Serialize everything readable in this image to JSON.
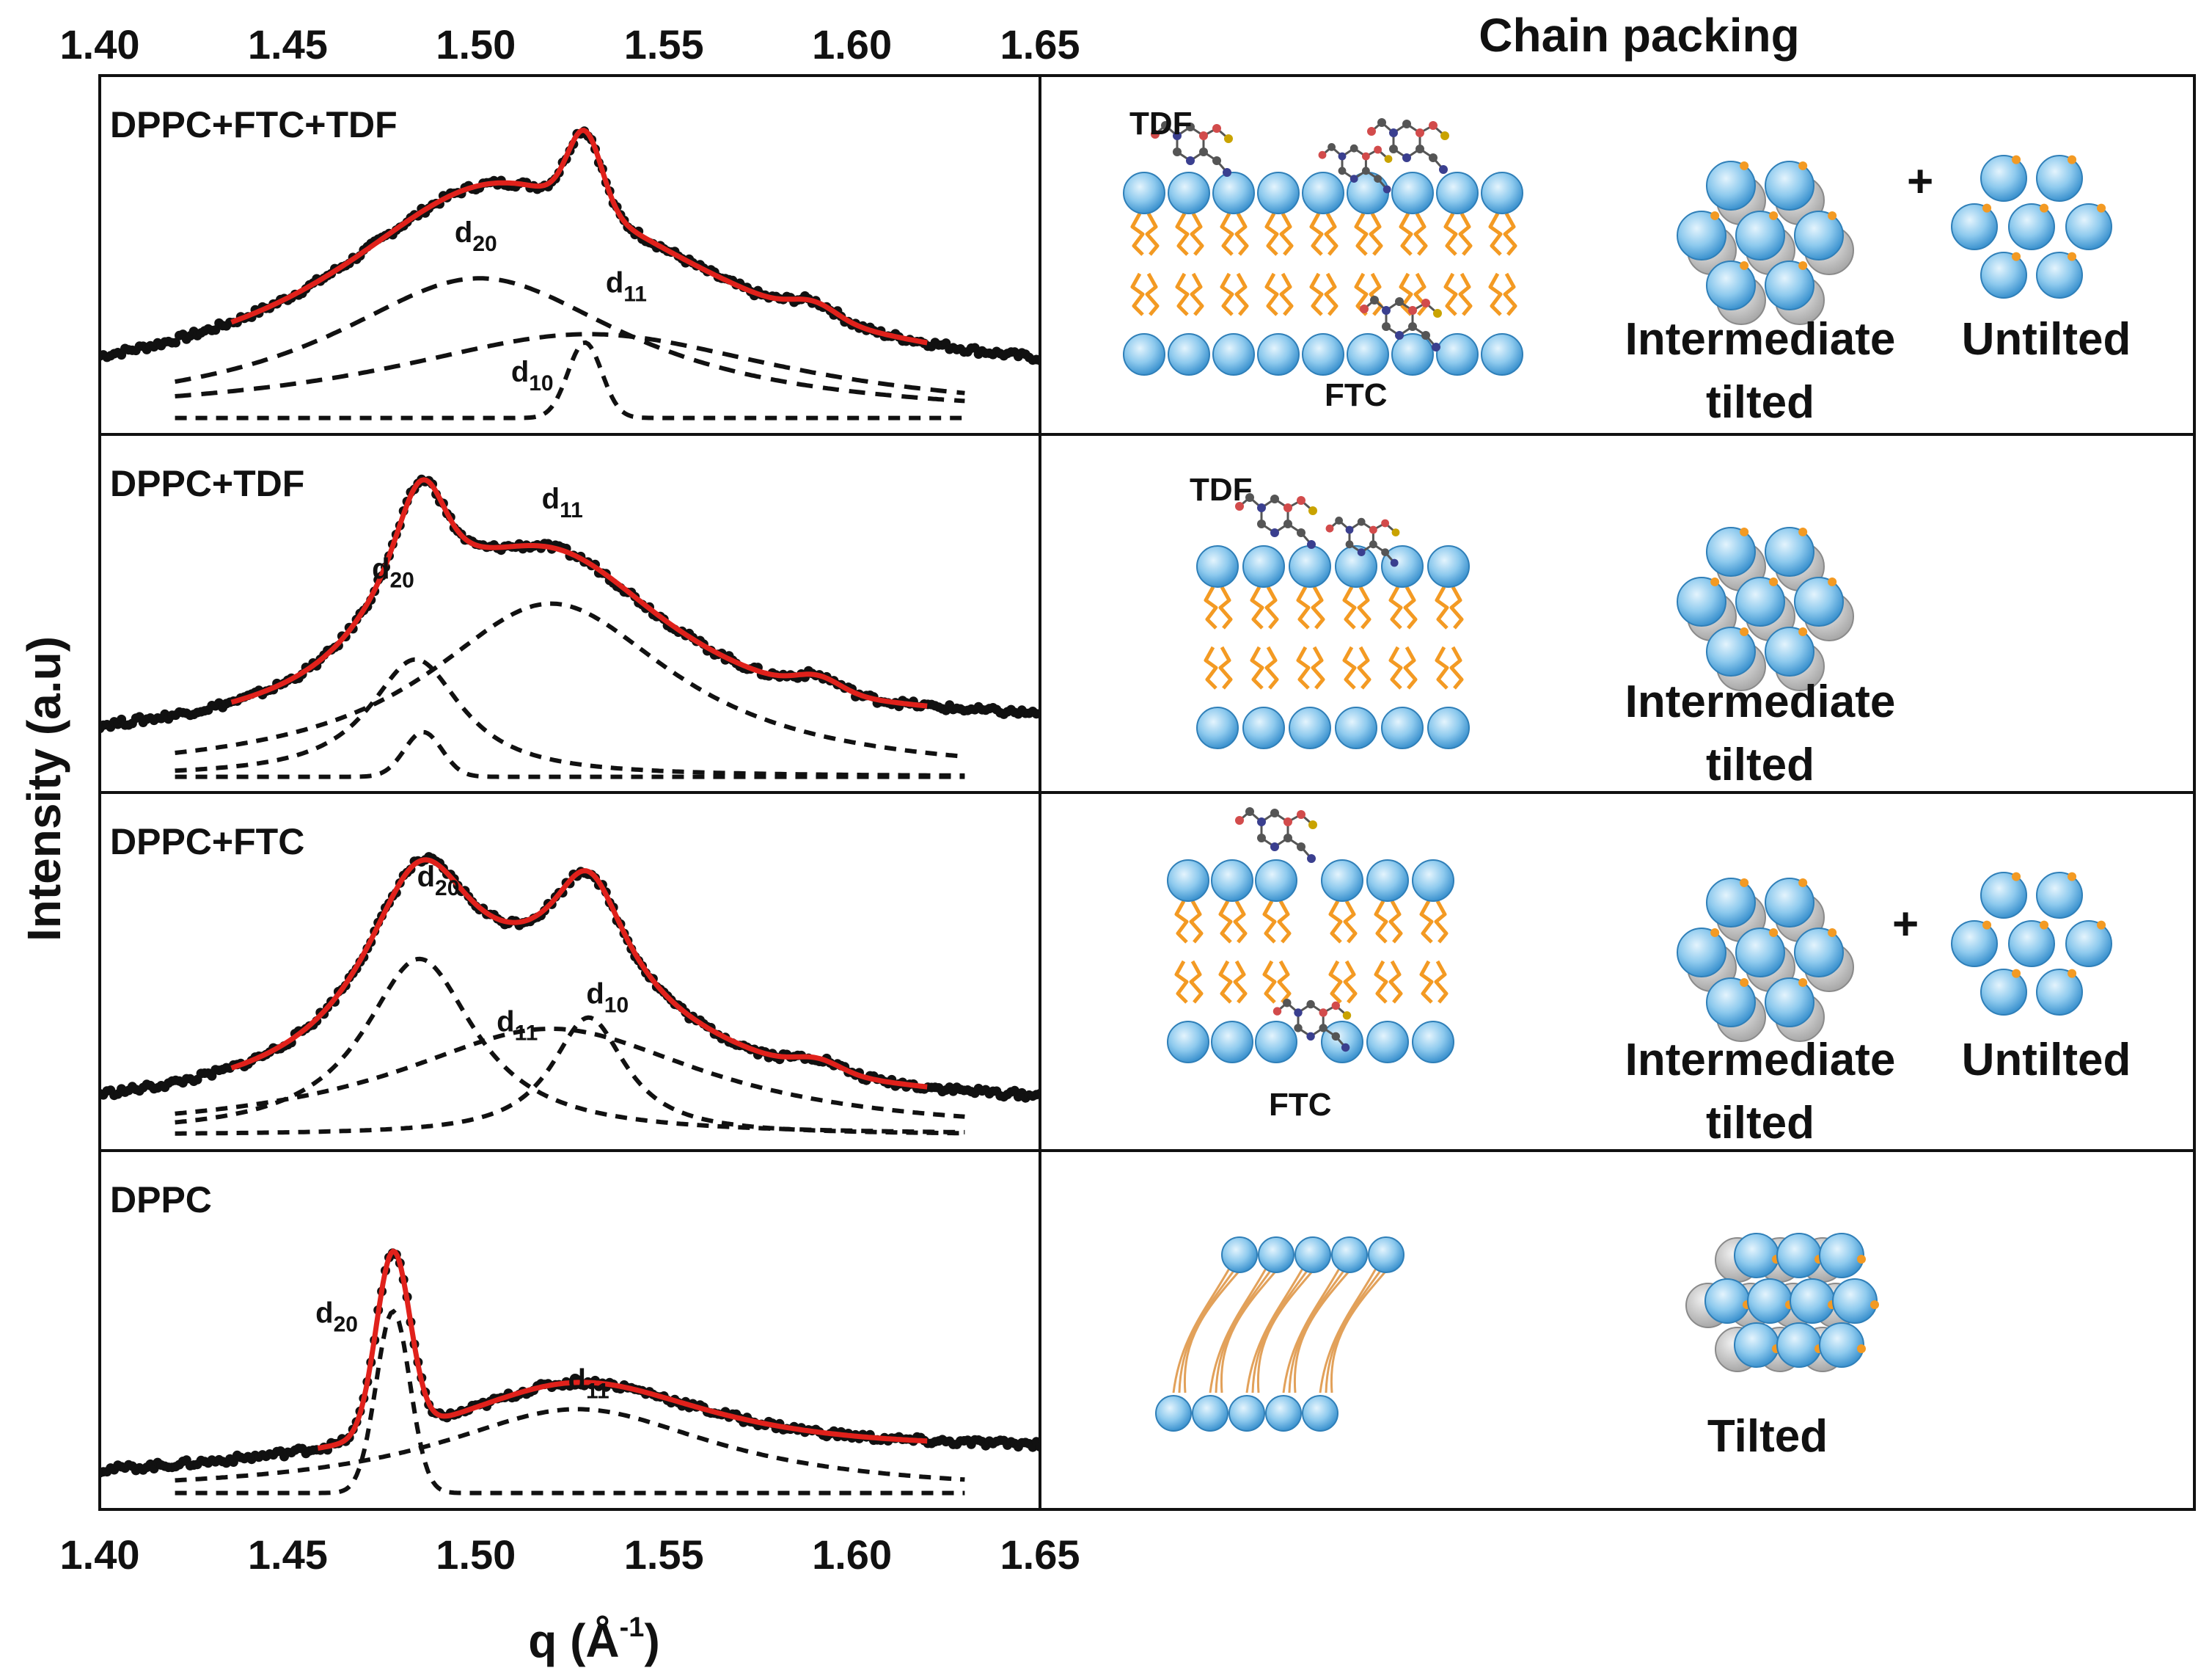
{
  "chart_data": {
    "type": "line",
    "xlabel_base": "q (Å",
    "xlabel_sup": "-1",
    "xlabel_end": ")",
    "ylabel": "Intensity (a.u)",
    "xlim": [
      1.4,
      1.65
    ],
    "xticks": [
      "1.40",
      "1.45",
      "1.50",
      "1.55",
      "1.60",
      "1.65"
    ],
    "right_title": "Chain packing",
    "panels": [
      {
        "name": "DPPC+FTC+TDF",
        "baseline": 0.1,
        "slope": 0.03,
        "data_range": [
          1.4,
          1.65
        ],
        "fit_range": [
          1.435,
          1.62
        ],
        "components": [
          {
            "label": "20",
            "center": 1.501,
            "height": 0.5,
            "width": 0.048,
            "dash": "long",
            "lab_q": 1.5,
            "lab_y": 0.66
          },
          {
            "label": "11",
            "center": 1.53,
            "height": 0.3,
            "width": 0.065,
            "dash": "long",
            "lab_q": 1.54,
            "lab_y": 0.48
          },
          {
            "label": "10",
            "center": 1.529,
            "height": 0.27,
            "width": 0.0045,
            "dash": "short",
            "lab_q": 1.515,
            "lab_y": 0.16
          }
        ],
        "bumps": [
          {
            "center": 1.59,
            "height": 0.05,
            "width": 0.006
          }
        ],
        "packing": [
          "Intermediate tilted",
          "Untilted"
        ],
        "molecules": [
          "TDF",
          "FTC"
        ]
      },
      {
        "name": "DPPC+TDF",
        "baseline": 0.14,
        "slope": 0.06,
        "data_range": [
          1.4,
          1.65
        ],
        "fit_range": [
          1.435,
          1.62
        ],
        "components": [
          {
            "label": "20",
            "center": 1.484,
            "height": 0.42,
            "width": 0.015,
            "dash": "short",
            "lab_q": 1.478,
            "lab_y": 0.74
          },
          {
            "label": "11",
            "center": 1.52,
            "height": 0.62,
            "width": 0.04,
            "dash": "short",
            "lab_q": 1.523,
            "lab_y": 0.99
          },
          {
            "label": "",
            "center": 1.486,
            "height": 0.16,
            "width": 0.005,
            "dash": "none",
            "lab_q": 0,
            "lab_y": 0
          }
        ],
        "bumps": [
          {
            "center": 1.591,
            "height": 0.05,
            "width": 0.006
          }
        ],
        "packing": [
          "Intermediate tilted"
        ],
        "molecules": [
          "TDF"
        ]
      },
      {
        "name": "DPPC+FTC",
        "baseline": 0.09,
        "slope": 0.02,
        "data_range": [
          1.4,
          1.65
        ],
        "fit_range": [
          1.435,
          1.62
        ],
        "components": [
          {
            "label": "20",
            "center": 1.485,
            "height": 0.63,
            "width": 0.018,
            "dash": "short",
            "lab_q": 1.49,
            "lab_y": 0.92
          },
          {
            "label": "11",
            "center": 1.52,
            "height": 0.38,
            "width": 0.05,
            "dash": "short",
            "lab_q": 1.511,
            "lab_y": 0.4
          },
          {
            "label": "10",
            "center": 1.53,
            "height": 0.42,
            "width": 0.012,
            "dash": "short",
            "lab_q": 1.535,
            "lab_y": 0.5
          }
        ],
        "bumps": [
          {
            "center": 1.591,
            "height": 0.04,
            "width": 0.006
          }
        ],
        "packing": [
          "Intermediate tilted",
          "Untilted"
        ],
        "molecules": [
          "FTC"
        ]
      },
      {
        "name": "DPPC",
        "baseline": 0.08,
        "slope": 0.09,
        "data_range": [
          1.4,
          1.65
        ],
        "fit_range": [
          1.458,
          1.62
        ],
        "components": [
          {
            "label": "20",
            "center": 1.478,
            "height": 0.65,
            "width": 0.0045,
            "dash": "short",
            "lab_q": 1.463,
            "lab_y": 0.64
          },
          {
            "label": "11",
            "center": 1.527,
            "height": 0.3,
            "width": 0.045,
            "dash": "short",
            "lab_q": 1.53,
            "lab_y": 0.4
          },
          {
            "label": "",
            "center": 0,
            "height": 0,
            "width": 0.01,
            "dash": "none",
            "lab_q": 0,
            "lab_y": 0
          }
        ],
        "bumps": [],
        "packing": [
          "Tilted"
        ],
        "molecules": []
      }
    ],
    "plus_sign": "+",
    "peak_prefix": "d"
  }
}
